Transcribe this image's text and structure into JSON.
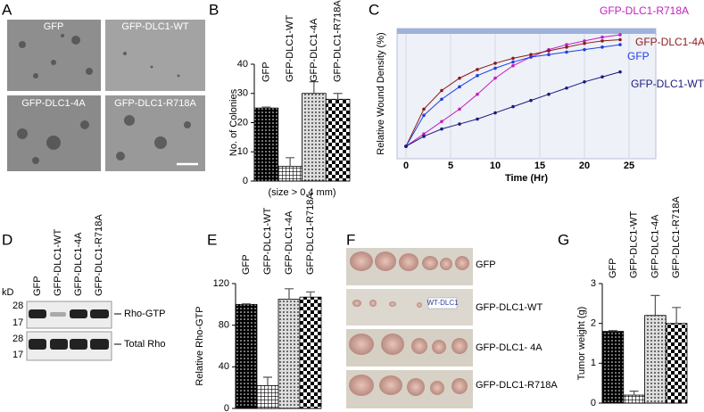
{
  "panel_letters": [
    "A",
    "B",
    "C",
    "D",
    "E",
    "F",
    "G"
  ],
  "panel_a": {
    "labels": [
      "GFP",
      "GFP-DLC1-WT",
      "GFP-DLC1-4A",
      "GFP-DLC1-R718A"
    ]
  },
  "panel_d": {
    "unit": "kD",
    "markers": [
      "28",
      "17",
      "28",
      "17"
    ],
    "lanes": [
      "GFP",
      "GFP-DLC1-WT",
      "GFP-DLC1-4A",
      "GFP-DLC1-R718A"
    ],
    "bands": [
      "Rho-GTP",
      "Total Rho"
    ]
  },
  "panel_f": {
    "labels": [
      "GFP",
      "GFP-DLC1-WT",
      "GFP-DLC1- 4A",
      "GFP-DLC1-R718A"
    ],
    "tag": "WT-DLC1"
  },
  "chart_data": [
    {
      "type": "bar",
      "ylabel": "No. of Colonies",
      "xlabel": "(size > 0.4 mm)",
      "categories": [
        "GFP",
        "GFP-DLC1-WT",
        "GFP-DLC1-4A",
        "GFP-DLC1-R718A"
      ],
      "values": [
        25,
        5,
        30,
        28
      ],
      "errors": [
        0.3,
        3,
        4,
        2
      ],
      "ylim": [
        0,
        40
      ],
      "yticks": [
        0,
        10,
        20,
        30,
        40
      ]
    },
    {
      "type": "line",
      "xlabel": "Time (Hr)",
      "ylabel": "Relative Wound Density (%)",
      "x": [
        0,
        2,
        4,
        6,
        8,
        10,
        12,
        14,
        16,
        18,
        20,
        22,
        24
      ],
      "xlim": [
        -1,
        28
      ],
      "xticks": [
        0,
        5,
        10,
        15,
        20,
        25
      ],
      "ylim": [
        -10,
        95
      ],
      "series": [
        {
          "name": "GFP-DLC1-R718A",
          "color": "#c21fc2",
          "values": [
            0,
            10,
            20,
            30,
            42,
            55,
            65,
            72,
            78,
            82,
            85,
            88,
            90
          ]
        },
        {
          "name": "GFP-DLC1-4A",
          "color": "#8b1a1a",
          "values": [
            0,
            30,
            45,
            55,
            62,
            67,
            71,
            74,
            77,
            80,
            83,
            85,
            86
          ]
        },
        {
          "name": "GFP",
          "color": "#1f3fe0",
          "values": [
            0,
            25,
            38,
            48,
            57,
            63,
            68,
            72,
            74,
            76,
            78,
            80,
            82
          ]
        },
        {
          "name": "GFP-DLC1-WT",
          "color": "#1a1a80",
          "values": [
            0,
            8,
            14,
            18,
            22,
            27,
            32,
            37,
            42,
            47,
            52,
            56,
            60
          ]
        }
      ]
    },
    {
      "type": "bar",
      "ylabel": "Relative Rho-GTP",
      "categories": [
        "GFP",
        "GFP-DLC1-WT",
        "GFP-DLC1-4A",
        "GFP-DLC1-R718A"
      ],
      "values": [
        100,
        22,
        105,
        107
      ],
      "errors": [
        0.5,
        8,
        10,
        5
      ],
      "ylim": [
        0,
        120
      ],
      "yticks": [
        0,
        40,
        80,
        120
      ]
    },
    {
      "type": "bar",
      "ylabel": "Tumor weight (g)",
      "categories": [
        "GFP",
        "GFP-DLC1-WT",
        "GFP-DLC1-4A",
        "GFP-DLC1-R718A"
      ],
      "values": [
        1.8,
        0.2,
        2.2,
        2.0
      ],
      "errors": [
        0.02,
        0.1,
        0.5,
        0.4
      ],
      "ylim": [
        0,
        3
      ],
      "yticks": [
        0,
        1,
        2,
        3
      ]
    }
  ]
}
